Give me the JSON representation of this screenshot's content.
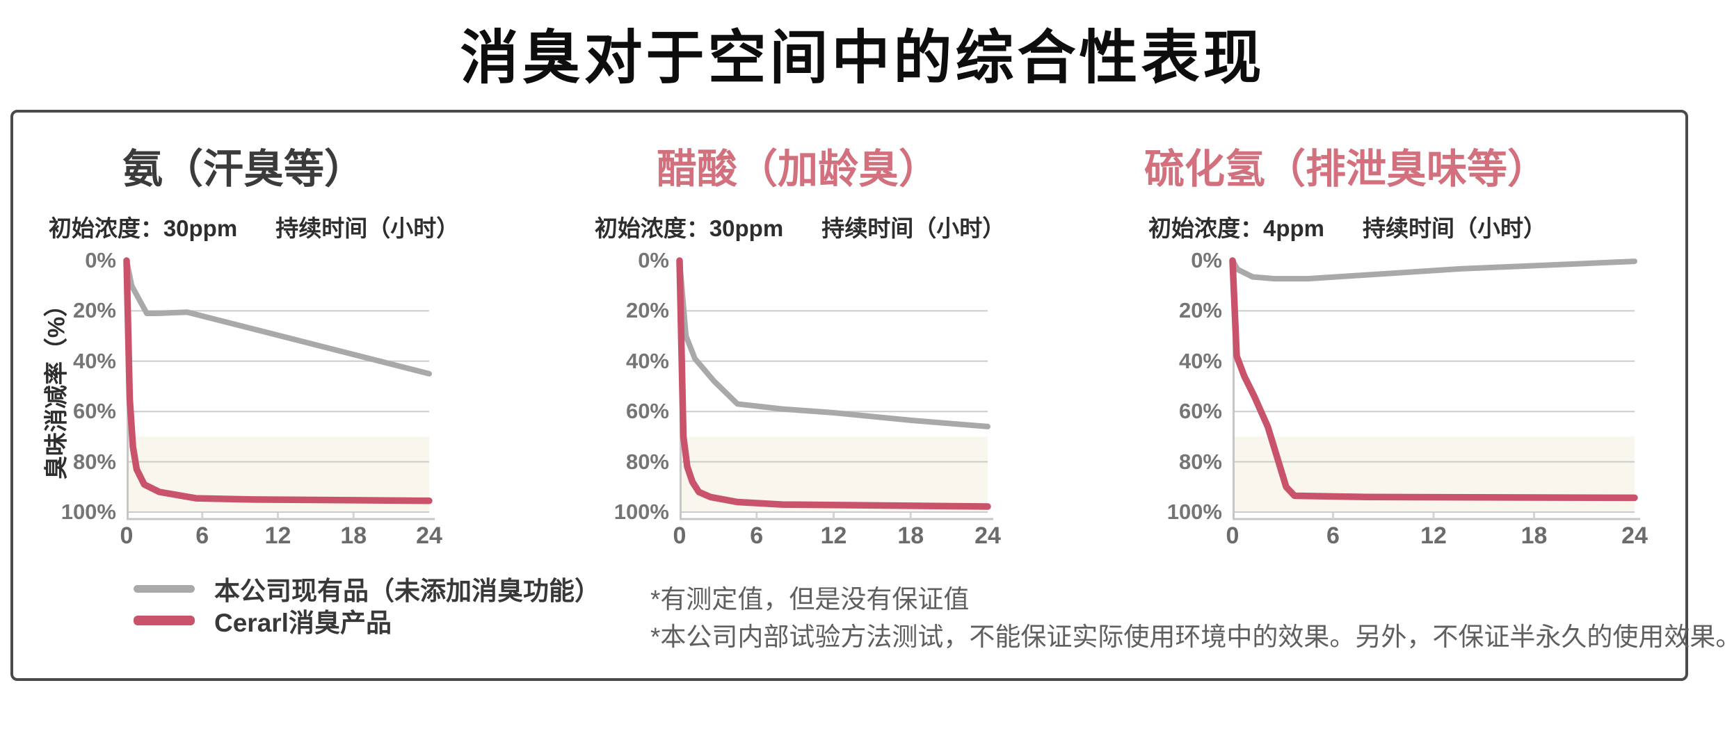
{
  "page_title": "消臭对于空间中的综合性表现",
  "y_axis_label": "臭味消减率（%）",
  "y_ticks": [
    "0%",
    "20%",
    "40%",
    "60%",
    "80%",
    "100%"
  ],
  "x_ticks": [
    "0",
    "6",
    "12",
    "18",
    "24"
  ],
  "legend": {
    "items": [
      {
        "label": "本公司现有品（未添加消臭功能）",
        "color": "#a9a9a9"
      },
      {
        "label": "Cerarl消臭产品",
        "color": "#c9536b"
      }
    ]
  },
  "footnotes": [
    "*有测定值，但是没有保证值",
    "*本公司内部试验方法测试，不能保证实际使用环境中的效果。另外，不保证半永久的使用效果。"
  ],
  "colors": {
    "accent_pink": "#d2707e",
    "line_existing": "#a9a9a9",
    "line_cerarl": "#c9536b",
    "grid": "#cbcbcb",
    "axis": "#c6c6c6",
    "axis_tick": "#d4d4d4",
    "band": "#f9f6ee",
    "tick_text": "#757575",
    "box_border": "#4a4a4a"
  },
  "chart_data": [
    {
      "type": "line",
      "title": "氨（汗臭等）",
      "title_color": "#3b3b3b",
      "subtitle_concentration": "初始浓度：30ppm",
      "subtitle_duration": "持续时间（小时）",
      "xlim": [
        0,
        24
      ],
      "x_tick_values": [
        0,
        6,
        12,
        18,
        24
      ],
      "ylim": [
        0,
        100
      ],
      "y_axis_inverted_percent": true,
      "grid": true,
      "highlight_band_percent": [
        70,
        100
      ],
      "series": [
        {
          "name": "本公司现有品（未添加消臭功能）",
          "color": "#a9a9a9",
          "points": [
            [
              0,
              0
            ],
            [
              0.4,
              10
            ],
            [
              1.6,
              21
            ],
            [
              2.5,
              21
            ],
            [
              4.8,
              20.5
            ],
            [
              24,
              45
            ]
          ]
        },
        {
          "name": "Cerarl消臭产品",
          "color": "#c9536b",
          "points": [
            [
              0,
              0
            ],
            [
              0.25,
              55
            ],
            [
              0.5,
              74
            ],
            [
              0.8,
              83
            ],
            [
              1.4,
              89
            ],
            [
              2.6,
              92
            ],
            [
              5.5,
              94.5
            ],
            [
              10,
              95
            ],
            [
              24,
              95.5
            ]
          ]
        }
      ]
    },
    {
      "type": "line",
      "title": "醋酸（加龄臭）",
      "title_color": "#d2707e",
      "subtitle_concentration": "初始浓度：30ppm",
      "subtitle_duration": "持续时间（小时）",
      "xlim": [
        0,
        24
      ],
      "x_tick_values": [
        0,
        6,
        12,
        18,
        24
      ],
      "ylim": [
        0,
        100
      ],
      "y_axis_inverted_percent": true,
      "grid": true,
      "highlight_band_percent": [
        70,
        100
      ],
      "series": [
        {
          "name": "本公司现有品（未添加消臭功能）",
          "color": "#a9a9a9",
          "points": [
            [
              0,
              0
            ],
            [
              0.5,
              30
            ],
            [
              1.2,
              39
            ],
            [
              2.7,
              48
            ],
            [
              4.5,
              57
            ],
            [
              8,
              59
            ],
            [
              12,
              60.5
            ],
            [
              18,
              63.5
            ],
            [
              24,
              66
            ]
          ]
        },
        {
          "name": "Cerarl消臭产品",
          "color": "#c9536b",
          "points": [
            [
              0,
              0
            ],
            [
              0.3,
              70
            ],
            [
              0.6,
              82
            ],
            [
              1,
              88
            ],
            [
              1.5,
              92
            ],
            [
              2.4,
              94
            ],
            [
              4.5,
              96
            ],
            [
              8,
              97
            ],
            [
              24,
              97.8
            ]
          ]
        }
      ]
    },
    {
      "type": "line",
      "title": "硫化氢（排泄臭味等）",
      "title_color": "#d2707e",
      "subtitle_concentration": "初始浓度：4ppm",
      "subtitle_duration": "持续时间（小时）",
      "xlim": [
        0,
        24
      ],
      "x_tick_values": [
        0,
        6,
        12,
        18,
        24
      ],
      "ylim": [
        0,
        100
      ],
      "y_axis_inverted_percent": true,
      "grid": true,
      "highlight_band_percent": [
        70,
        100
      ],
      "series": [
        {
          "name": "本公司现有品（未添加消臭功能）",
          "color": "#a9a9a9",
          "points": [
            [
              0,
              0
            ],
            [
              0.3,
              3.5
            ],
            [
              1.2,
              6.5
            ],
            [
              2.5,
              7.2
            ],
            [
              4.5,
              7.2
            ],
            [
              13.6,
              3.3
            ],
            [
              24,
              0.3
            ]
          ]
        },
        {
          "name": "Cerarl消臭产品",
          "color": "#c9536b",
          "points": [
            [
              0,
              0
            ],
            [
              0.25,
              38
            ],
            [
              0.7,
              46
            ],
            [
              1.3,
              54
            ],
            [
              2.1,
              66
            ],
            [
              2.7,
              79
            ],
            [
              3.2,
              90
            ],
            [
              3.7,
              93.5
            ],
            [
              8,
              94
            ],
            [
              24,
              94.3
            ]
          ]
        }
      ]
    }
  ]
}
